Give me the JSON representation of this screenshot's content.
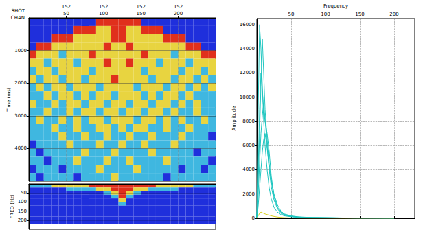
{
  "chart_data": [
    {
      "type": "heatmap",
      "xlabel": "CHAN",
      "x2label": "SHOT",
      "ylabel": "Time (ms)",
      "xlim": [
        0,
        250
      ],
      "xticks": [
        50,
        100,
        150,
        200
      ],
      "x2ticks": [
        {
          "value": 50,
          "label": "152"
        },
        {
          "value": 100,
          "label": "152"
        },
        {
          "value": 150,
          "label": "152"
        },
        {
          "value": 200,
          "label": "152"
        }
      ],
      "ylim": [
        0,
        5000
      ],
      "yticks": [
        1000,
        2000,
        3000,
        4000
      ],
      "x_bins": [
        0,
        10,
        20,
        30,
        40,
        50,
        60,
        70,
        80,
        90,
        100,
        110,
        120,
        130,
        140,
        150,
        160,
        170,
        180,
        190,
        200,
        210,
        220,
        230,
        240,
        250
      ],
      "y_bins": [
        0,
        250,
        500,
        750,
        1000,
        1250,
        1500,
        1750,
        2000,
        2250,
        2500,
        2750,
        3000,
        3250,
        3500,
        3750,
        4000,
        4250,
        4500,
        4750,
        5000
      ],
      "cells": [
        [
          0,
          0,
          0,
          0,
          0,
          0,
          0,
          0,
          0,
          3,
          3,
          3,
          3,
          3,
          3,
          0,
          0,
          0,
          0,
          0,
          0,
          0,
          0,
          0,
          0
        ],
        [
          0,
          0,
          0,
          0,
          0,
          0,
          3,
          3,
          3,
          2,
          2,
          3,
          3,
          2,
          2,
          3,
          3,
          3,
          0,
          0,
          0,
          0,
          0,
          0,
          0
        ],
        [
          0,
          0,
          0,
          3,
          3,
          3,
          2,
          2,
          2,
          2,
          2,
          3,
          3,
          2,
          2,
          2,
          2,
          2,
          3,
          3,
          3,
          0,
          0,
          0,
          0
        ],
        [
          0,
          3,
          3,
          2,
          2,
          2,
          2,
          2,
          2,
          2,
          3,
          2,
          2,
          3,
          2,
          2,
          2,
          2,
          2,
          2,
          2,
          3,
          3,
          0,
          0
        ],
        [
          3,
          2,
          2,
          2,
          1,
          2,
          2,
          2,
          3,
          2,
          2,
          2,
          2,
          2,
          2,
          3,
          2,
          2,
          2,
          1,
          2,
          2,
          2,
          3,
          3
        ],
        [
          2,
          2,
          1,
          2,
          2,
          2,
          1,
          2,
          2,
          2,
          3,
          2,
          2,
          3,
          2,
          2,
          2,
          1,
          2,
          2,
          2,
          1,
          2,
          2,
          2
        ],
        [
          1,
          2,
          2,
          1,
          2,
          2,
          2,
          2,
          1,
          2,
          2,
          2,
          2,
          2,
          2,
          1,
          2,
          2,
          2,
          2,
          1,
          2,
          2,
          1,
          2
        ],
        [
          2,
          1,
          2,
          2,
          1,
          2,
          2,
          1,
          2,
          2,
          2,
          3,
          2,
          2,
          2,
          2,
          1,
          2,
          2,
          1,
          2,
          2,
          1,
          2,
          1
        ],
        [
          1,
          2,
          1,
          2,
          2,
          1,
          2,
          2,
          2,
          1,
          2,
          2,
          2,
          2,
          1,
          2,
          2,
          2,
          1,
          2,
          2,
          1,
          2,
          1,
          2
        ],
        [
          1,
          1,
          2,
          1,
          2,
          2,
          1,
          2,
          1,
          2,
          2,
          1,
          2,
          2,
          2,
          1,
          2,
          1,
          2,
          2,
          1,
          2,
          1,
          1,
          1
        ],
        [
          2,
          1,
          1,
          2,
          1,
          2,
          2,
          1,
          2,
          2,
          1,
          2,
          2,
          1,
          2,
          2,
          1,
          2,
          2,
          1,
          2,
          1,
          2,
          1,
          1
        ],
        [
          1,
          1,
          2,
          1,
          1,
          2,
          1,
          2,
          2,
          1,
          2,
          2,
          1,
          2,
          2,
          1,
          2,
          2,
          1,
          2,
          1,
          1,
          2,
          1,
          1
        ],
        [
          1,
          2,
          1,
          1,
          2,
          1,
          2,
          1,
          2,
          2,
          1,
          2,
          2,
          2,
          1,
          2,
          2,
          1,
          2,
          1,
          2,
          1,
          1,
          2,
          1
        ],
        [
          1,
          1,
          1,
          2,
          1,
          1,
          2,
          1,
          1,
          2,
          2,
          1,
          2,
          1,
          2,
          2,
          1,
          1,
          2,
          1,
          1,
          2,
          1,
          1,
          1
        ],
        [
          1,
          1,
          1,
          1,
          2,
          1,
          1,
          2,
          1,
          1,
          2,
          1,
          1,
          2,
          1,
          1,
          2,
          1,
          1,
          1,
          2,
          1,
          1,
          1,
          0
        ],
        [
          0,
          1,
          1,
          1,
          1,
          2,
          1,
          1,
          1,
          2,
          1,
          1,
          2,
          1,
          1,
          2,
          1,
          1,
          1,
          2,
          1,
          1,
          1,
          1,
          1
        ],
        [
          1,
          0,
          1,
          1,
          1,
          1,
          1,
          2,
          1,
          1,
          1,
          2,
          1,
          1,
          1,
          1,
          2,
          1,
          1,
          1,
          1,
          1,
          0,
          1,
          1
        ],
        [
          1,
          1,
          0,
          1,
          1,
          1,
          2,
          1,
          1,
          1,
          2,
          1,
          1,
          2,
          1,
          1,
          1,
          1,
          2,
          1,
          1,
          1,
          1,
          1,
          0
        ],
        [
          0,
          1,
          1,
          1,
          0,
          1,
          1,
          1,
          1,
          2,
          1,
          1,
          1,
          1,
          2,
          1,
          1,
          1,
          1,
          1,
          0,
          1,
          1,
          0,
          1
        ],
        [
          1,
          0,
          1,
          1,
          1,
          1,
          0,
          1,
          1,
          1,
          1,
          2,
          1,
          1,
          1,
          1,
          1,
          1,
          0,
          1,
          1,
          1,
          1,
          1,
          1
        ]
      ],
      "color_range": [
        0,
        3
      ],
      "grid": true
    },
    {
      "type": "heatmap",
      "ylabel": "FREQ (Hz)",
      "tick_labels": "y",
      "xlim": [
        0,
        250
      ],
      "ylim": [
        0,
        250
      ],
      "yticks": [
        50,
        100,
        150,
        200
      ],
      "x_bins": [
        0,
        10,
        20,
        30,
        40,
        50,
        60,
        70,
        80,
        90,
        100,
        110,
        120,
        130,
        140,
        150,
        160,
        170,
        180,
        190,
        200,
        210,
        220,
        230,
        240,
        250
      ],
      "y_bins": [
        0,
        20,
        40,
        60,
        80,
        100,
        120,
        140,
        160,
        180,
        200,
        220
      ],
      "cells": [
        [
          1,
          1,
          1,
          2,
          2,
          2,
          2,
          2,
          3,
          3,
          3,
          3,
          3,
          3,
          3,
          3,
          3,
          2,
          2,
          2,
          2,
          2,
          1,
          1,
          1
        ],
        [
          0,
          0,
          0,
          0,
          0,
          1,
          1,
          1,
          1,
          2,
          2,
          3,
          3,
          3,
          2,
          2,
          1,
          1,
          1,
          1,
          0,
          0,
          0,
          0,
          0
        ],
        [
          0,
          0,
          0,
          0,
          0,
          0,
          0,
          0,
          0,
          0,
          1,
          2,
          3,
          2,
          1,
          0,
          0,
          0,
          0,
          0,
          0,
          0,
          0,
          0,
          0
        ],
        [
          0,
          0,
          0,
          0,
          0,
          0,
          0,
          0,
          0,
          0,
          0,
          1,
          3,
          1,
          0,
          0,
          0,
          0,
          0,
          0,
          0,
          0,
          0,
          0,
          0
        ],
        [
          0,
          0,
          0,
          0,
          0,
          0,
          0,
          0,
          0,
          0,
          0,
          0,
          2,
          0,
          0,
          0,
          0,
          0,
          0,
          0,
          0,
          0,
          0,
          0,
          0
        ],
        [
          0,
          0,
          0,
          0,
          0,
          0,
          0,
          0,
          0,
          0,
          0,
          0,
          1,
          0,
          0,
          0,
          0,
          0,
          0,
          0,
          0,
          0,
          0,
          0,
          0
        ],
        [
          0,
          0,
          0,
          0,
          0,
          0,
          0,
          0,
          0,
          0,
          0,
          0,
          0,
          0,
          0,
          0,
          0,
          0,
          0,
          0,
          0,
          0,
          0,
          0,
          0
        ],
        [
          0,
          0,
          0,
          0,
          0,
          0,
          0,
          0,
          0,
          0,
          0,
          0,
          0,
          0,
          0,
          0,
          0,
          0,
          0,
          0,
          0,
          0,
          0,
          0,
          0
        ],
        [
          0,
          0,
          0,
          0,
          0,
          0,
          0,
          0,
          0,
          0,
          0,
          0,
          0,
          0,
          0,
          0,
          0,
          0,
          0,
          0,
          0,
          0,
          0,
          0,
          0
        ],
        [
          0,
          0,
          0,
          0,
          0,
          0,
          0,
          0,
          0,
          0,
          0,
          0,
          0,
          0,
          0,
          0,
          0,
          0,
          0,
          0,
          0,
          0,
          0,
          0,
          0
        ],
        [
          0,
          0,
          0,
          0,
          0,
          0,
          0,
          0,
          0,
          0,
          0,
          0,
          0,
          0,
          0,
          0,
          0,
          0,
          0,
          0,
          0,
          0,
          0,
          0,
          0
        ]
      ],
      "color_range": [
        0,
        3
      ],
      "grid": true
    },
    {
      "type": "line",
      "xlabel": "Frequency",
      "ylabel": "Amplitude",
      "xlim": [
        0,
        230
      ],
      "xticks": [
        50,
        100,
        150,
        200
      ],
      "ylim": [
        0,
        16500
      ],
      "yticks": [
        0,
        2000,
        4000,
        6000,
        8000,
        10000,
        12000,
        14000,
        16000
      ],
      "x": [
        0,
        2,
        4,
        6,
        8,
        10,
        12,
        15,
        18,
        21,
        25,
        30,
        35,
        40,
        50,
        60,
        80,
        100,
        120,
        150,
        200
      ],
      "series": [
        {
          "color": "#1fc6c0",
          "values": [
            0,
            9000,
            16000,
            14000,
            11000,
            8000,
            6000,
            4000,
            2500,
            1600,
            900,
            500,
            300,
            200,
            120,
            80,
            50,
            40,
            30,
            20,
            10
          ]
        },
        {
          "color": "#1fc6c0",
          "values": [
            0,
            3000,
            7000,
            11000,
            14800,
            12000,
            9000,
            6500,
            4500,
            3200,
            2000,
            1100,
            600,
            350,
            200,
            120,
            60,
            40,
            30,
            20,
            10
          ]
        },
        {
          "color": "#1fc6c0",
          "values": [
            0,
            4000,
            9000,
            12000,
            10500,
            9000,
            8000,
            7000,
            5500,
            3500,
            1800,
            900,
            500,
            300,
            150,
            100,
            50,
            40,
            30,
            20,
            10
          ]
        },
        {
          "color": "#1fc6c0",
          "values": [
            0,
            2000,
            4500,
            7000,
            8500,
            9500,
            8200,
            6000,
            4000,
            2600,
            1500,
            800,
            400,
            250,
            150,
            90,
            50,
            40,
            30,
            20,
            10
          ]
        },
        {
          "color": "#1fc6c0",
          "values": [
            0,
            1000,
            2500,
            4000,
            5500,
            6500,
            7000,
            5800,
            4200,
            3000,
            1800,
            900,
            500,
            300,
            150,
            90,
            50,
            40,
            30,
            20,
            10
          ]
        },
        {
          "color": "#d8d020",
          "values": [
            0,
            200,
            400,
            500,
            450,
            400,
            350,
            300,
            250,
            200,
            150,
            100,
            70,
            50,
            30,
            20,
            10,
            10,
            5,
            5,
            0
          ]
        }
      ],
      "grid": true
    }
  ]
}
